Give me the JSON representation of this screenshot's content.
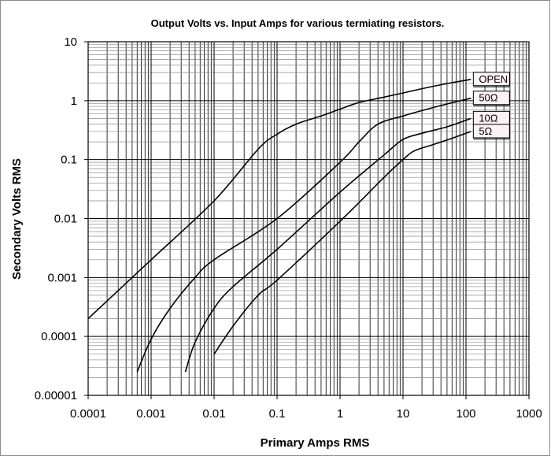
{
  "chart_data": {
    "type": "line",
    "title": "Output Volts vs. Input Amps for various termiating resistors.",
    "xlabel": "Primary Amps RMS",
    "ylabel": "Secondary Volts RMS",
    "x_scale": "log",
    "y_scale": "log",
    "xlim": [
      0.0001,
      1000
    ],
    "ylim": [
      1e-05,
      10
    ],
    "x_ticks": [
      "0.0001",
      "0.001",
      "0.01",
      "0.1",
      "1",
      "10",
      "100",
      "1000"
    ],
    "y_ticks": [
      "0.00001",
      "0.0001",
      "0.001",
      "0.01",
      "0.1",
      "1",
      "10"
    ],
    "grid": true,
    "legend": "inline labels at right end of each series",
    "series": [
      {
        "name": "OPEN",
        "x": [
          0.0001,
          0.001,
          0.01,
          0.05,
          0.1,
          0.2,
          0.5,
          1,
          2,
          5,
          10,
          20,
          50,
          120
        ],
        "y": [
          0.0002,
          0.002,
          0.02,
          0.15,
          0.27,
          0.4,
          0.55,
          0.72,
          0.93,
          1.15,
          1.35,
          1.6,
          1.95,
          2.3
        ]
      },
      {
        "name": "50Ω",
        "x": [
          0.0006,
          0.001,
          0.002,
          0.005,
          0.01,
          0.1,
          1,
          2,
          4,
          10,
          20,
          50,
          120
        ],
        "y": [
          2.5e-05,
          9e-05,
          0.0003,
          0.001,
          0.002,
          0.01,
          0.09,
          0.2,
          0.4,
          0.55,
          0.68,
          0.88,
          1.1
        ]
      },
      {
        "name": "10Ω",
        "x": [
          0.0035,
          0.005,
          0.01,
          0.02,
          0.1,
          1,
          5,
          10,
          20,
          50,
          120
        ],
        "y": [
          2.5e-05,
          8e-05,
          0.0003,
          0.0007,
          0.003,
          0.028,
          0.12,
          0.22,
          0.28,
          0.36,
          0.5
        ]
      },
      {
        "name": "5Ω",
        "x": [
          0.01,
          0.02,
          0.05,
          0.1,
          1,
          5,
          10,
          15,
          30,
          60,
          120
        ],
        "y": [
          5e-05,
          0.00015,
          0.0005,
          0.0009,
          0.009,
          0.05,
          0.1,
          0.14,
          0.18,
          0.23,
          0.3
        ]
      }
    ]
  }
}
